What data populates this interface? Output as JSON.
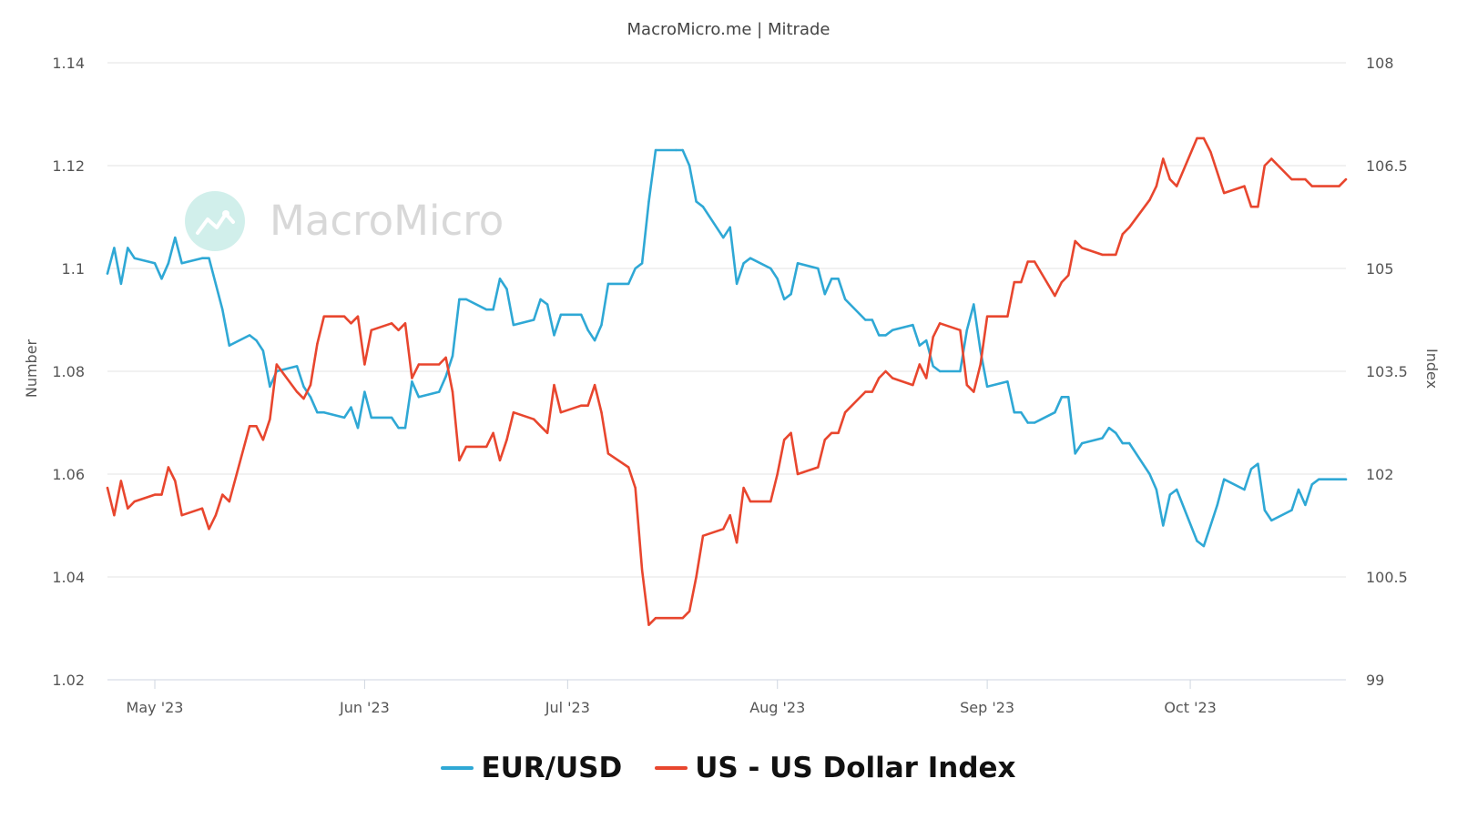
{
  "chart_data": {
    "type": "line",
    "title": "MacroMicro.me | Mitrade",
    "watermark": "MacroMicro",
    "xlabel": "",
    "ylabel_left": "Number",
    "ylabel_right": "Index",
    "ylim_left": [
      1.02,
      1.14
    ],
    "ylim_right": [
      99,
      108
    ],
    "yticks_left": [
      "1.02",
      "1.04",
      "1.06",
      "1.08",
      "1.1",
      "1.12",
      "1.14"
    ],
    "yticks_right": [
      "99",
      "100.5",
      "102",
      "103.5",
      "105",
      "106.5",
      "108"
    ],
    "x_range": [
      "2023-04-24",
      "2023-10-24"
    ],
    "x_ticks": [
      {
        "date": "2023-05-01",
        "label": "May '23"
      },
      {
        "date": "2023-06-01",
        "label": "Jun '23"
      },
      {
        "date": "2023-07-01",
        "label": "Jul '23"
      },
      {
        "date": "2023-08-01",
        "label": "Aug '23"
      },
      {
        "date": "2023-09-01",
        "label": "Sep '23"
      },
      {
        "date": "2023-10-01",
        "label": "Oct '23"
      }
    ],
    "grid": true,
    "legend_position": "bottom-center",
    "series": [
      {
        "name": "EUR/USD",
        "axis": "left",
        "color": "#2fa8d5",
        "points": [
          [
            "2023-04-24",
            1.099
          ],
          [
            "2023-04-25",
            1.104
          ],
          [
            "2023-04-26",
            1.097
          ],
          [
            "2023-04-27",
            1.104
          ],
          [
            "2023-04-28",
            1.102
          ],
          [
            "2023-05-01",
            1.101
          ],
          [
            "2023-05-02",
            1.098
          ],
          [
            "2023-05-03",
            1.101
          ],
          [
            "2023-05-04",
            1.106
          ],
          [
            "2023-05-05",
            1.101
          ],
          [
            "2023-05-08",
            1.102
          ],
          [
            "2023-05-09",
            1.102
          ],
          [
            "2023-05-10",
            1.097
          ],
          [
            "2023-05-11",
            1.092
          ],
          [
            "2023-05-12",
            1.085
          ],
          [
            "2023-05-15",
            1.087
          ],
          [
            "2023-05-16",
            1.086
          ],
          [
            "2023-05-17",
            1.084
          ],
          [
            "2023-05-18",
            1.077
          ],
          [
            "2023-05-19",
            1.08
          ],
          [
            "2023-05-22",
            1.081
          ],
          [
            "2023-05-23",
            1.077
          ],
          [
            "2023-05-24",
            1.075
          ],
          [
            "2023-05-25",
            1.072
          ],
          [
            "2023-05-26",
            1.072
          ],
          [
            "2023-05-29",
            1.071
          ],
          [
            "2023-05-30",
            1.073
          ],
          [
            "2023-05-31",
            1.069
          ],
          [
            "2023-06-01",
            1.076
          ],
          [
            "2023-06-02",
            1.071
          ],
          [
            "2023-06-05",
            1.071
          ],
          [
            "2023-06-06",
            1.069
          ],
          [
            "2023-06-07",
            1.069
          ],
          [
            "2023-06-08",
            1.078
          ],
          [
            "2023-06-09",
            1.075
          ],
          [
            "2023-06-12",
            1.076
          ],
          [
            "2023-06-13",
            1.079
          ],
          [
            "2023-06-14",
            1.083
          ],
          [
            "2023-06-15",
            1.094
          ],
          [
            "2023-06-16",
            1.094
          ],
          [
            "2023-06-19",
            1.092
          ],
          [
            "2023-06-20",
            1.092
          ],
          [
            "2023-06-21",
            1.098
          ],
          [
            "2023-06-22",
            1.096
          ],
          [
            "2023-06-23",
            1.089
          ],
          [
            "2023-06-26",
            1.09
          ],
          [
            "2023-06-27",
            1.094
          ],
          [
            "2023-06-28",
            1.093
          ],
          [
            "2023-06-29",
            1.087
          ],
          [
            "2023-06-30",
            1.091
          ],
          [
            "2023-07-03",
            1.091
          ],
          [
            "2023-07-04",
            1.088
          ],
          [
            "2023-07-05",
            1.086
          ],
          [
            "2023-07-06",
            1.089
          ],
          [
            "2023-07-07",
            1.097
          ],
          [
            "2023-07-10",
            1.097
          ],
          [
            "2023-07-11",
            1.1
          ],
          [
            "2023-07-12",
            1.101
          ],
          [
            "2023-07-13",
            1.113
          ],
          [
            "2023-07-14",
            1.123
          ],
          [
            "2023-07-17",
            1.123
          ],
          [
            "2023-07-18",
            1.123
          ],
          [
            "2023-07-19",
            1.12
          ],
          [
            "2023-07-20",
            1.113
          ],
          [
            "2023-07-21",
            1.112
          ],
          [
            "2023-07-24",
            1.106
          ],
          [
            "2023-07-25",
            1.108
          ],
          [
            "2023-07-26",
            1.097
          ],
          [
            "2023-07-27",
            1.101
          ],
          [
            "2023-07-28",
            1.102
          ],
          [
            "2023-07-31",
            1.1
          ],
          [
            "2023-08-01",
            1.098
          ],
          [
            "2023-08-02",
            1.094
          ],
          [
            "2023-08-03",
            1.095
          ],
          [
            "2023-08-04",
            1.101
          ],
          [
            "2023-08-07",
            1.1
          ],
          [
            "2023-08-08",
            1.095
          ],
          [
            "2023-08-09",
            1.098
          ],
          [
            "2023-08-10",
            1.098
          ],
          [
            "2023-08-11",
            1.094
          ],
          [
            "2023-08-14",
            1.09
          ],
          [
            "2023-08-15",
            1.09
          ],
          [
            "2023-08-16",
            1.087
          ],
          [
            "2023-08-17",
            1.087
          ],
          [
            "2023-08-18",
            1.088
          ],
          [
            "2023-08-21",
            1.089
          ],
          [
            "2023-08-22",
            1.085
          ],
          [
            "2023-08-23",
            1.086
          ],
          [
            "2023-08-24",
            1.081
          ],
          [
            "2023-08-25",
            1.08
          ],
          [
            "2023-08-28",
            1.08
          ],
          [
            "2023-08-29",
            1.088
          ],
          [
            "2023-08-30",
            1.093
          ],
          [
            "2023-08-31",
            1.084
          ],
          [
            "2023-09-01",
            1.077
          ],
          [
            "2023-09-04",
            1.078
          ],
          [
            "2023-09-05",
            1.072
          ],
          [
            "2023-09-06",
            1.072
          ],
          [
            "2023-09-07",
            1.07
          ],
          [
            "2023-09-08",
            1.07
          ],
          [
            "2023-09-11",
            1.072
          ],
          [
            "2023-09-12",
            1.075
          ],
          [
            "2023-09-13",
            1.075
          ],
          [
            "2023-09-14",
            1.064
          ],
          [
            "2023-09-15",
            1.066
          ],
          [
            "2023-09-18",
            1.067
          ],
          [
            "2023-09-19",
            1.069
          ],
          [
            "2023-09-20",
            1.068
          ],
          [
            "2023-09-21",
            1.066
          ],
          [
            "2023-09-22",
            1.066
          ],
          [
            "2023-09-25",
            1.06
          ],
          [
            "2023-09-26",
            1.057
          ],
          [
            "2023-09-27",
            1.05
          ],
          [
            "2023-09-28",
            1.056
          ],
          [
            "2023-09-29",
            1.057
          ],
          [
            "2023-10-02",
            1.047
          ],
          [
            "2023-10-03",
            1.046
          ],
          [
            "2023-10-04",
            1.05
          ],
          [
            "2023-10-05",
            1.054
          ],
          [
            "2023-10-06",
            1.059
          ],
          [
            "2023-10-09",
            1.057
          ],
          [
            "2023-10-10",
            1.061
          ],
          [
            "2023-10-11",
            1.062
          ],
          [
            "2023-10-12",
            1.053
          ],
          [
            "2023-10-13",
            1.051
          ],
          [
            "2023-10-16",
            1.053
          ],
          [
            "2023-10-17",
            1.057
          ],
          [
            "2023-10-18",
            1.054
          ],
          [
            "2023-10-19",
            1.058
          ],
          [
            "2023-10-20",
            1.059
          ],
          [
            "2023-10-23",
            1.059
          ],
          [
            "2023-10-24",
            1.059
          ]
        ]
      },
      {
        "name": "US - US Dollar Index",
        "axis": "right",
        "color": "#e8462e",
        "points": [
          [
            "2023-04-24",
            101.8
          ],
          [
            "2023-04-25",
            101.4
          ],
          [
            "2023-04-26",
            101.9
          ],
          [
            "2023-04-27",
            101.5
          ],
          [
            "2023-04-28",
            101.6
          ],
          [
            "2023-05-01",
            101.7
          ],
          [
            "2023-05-02",
            101.7
          ],
          [
            "2023-05-03",
            102.1
          ],
          [
            "2023-05-04",
            101.9
          ],
          [
            "2023-05-05",
            101.4
          ],
          [
            "2023-05-08",
            101.5
          ],
          [
            "2023-05-09",
            101.2
          ],
          [
            "2023-05-10",
            101.4
          ],
          [
            "2023-05-11",
            101.7
          ],
          [
            "2023-05-12",
            101.6
          ],
          [
            "2023-05-15",
            102.7
          ],
          [
            "2023-05-16",
            102.7
          ],
          [
            "2023-05-17",
            102.5
          ],
          [
            "2023-05-18",
            102.8
          ],
          [
            "2023-05-19",
            103.6
          ],
          [
            "2023-05-22",
            103.2
          ],
          [
            "2023-05-23",
            103.1
          ],
          [
            "2023-05-24",
            103.3
          ],
          [
            "2023-05-25",
            103.9
          ],
          [
            "2023-05-26",
            104.3
          ],
          [
            "2023-05-29",
            104.3
          ],
          [
            "2023-05-30",
            104.2
          ],
          [
            "2023-05-31",
            104.3
          ],
          [
            "2023-06-01",
            103.6
          ],
          [
            "2023-06-02",
            104.1
          ],
          [
            "2023-06-05",
            104.2
          ],
          [
            "2023-06-06",
            104.1
          ],
          [
            "2023-06-07",
            104.2
          ],
          [
            "2023-06-08",
            103.4
          ],
          [
            "2023-06-09",
            103.6
          ],
          [
            "2023-06-12",
            103.6
          ],
          [
            "2023-06-13",
            103.7
          ],
          [
            "2023-06-14",
            103.2
          ],
          [
            "2023-06-15",
            102.2
          ],
          [
            "2023-06-16",
            102.4
          ],
          [
            "2023-06-19",
            102.4
          ],
          [
            "2023-06-20",
            102.6
          ],
          [
            "2023-06-21",
            102.2
          ],
          [
            "2023-06-22",
            102.5
          ],
          [
            "2023-06-23",
            102.9
          ],
          [
            "2023-06-26",
            102.8
          ],
          [
            "2023-06-27",
            102.7
          ],
          [
            "2023-06-28",
            102.6
          ],
          [
            "2023-06-29",
            103.3
          ],
          [
            "2023-06-30",
            102.9
          ],
          [
            "2023-07-03",
            103.0
          ],
          [
            "2023-07-04",
            103.0
          ],
          [
            "2023-07-05",
            103.3
          ],
          [
            "2023-07-06",
            102.9
          ],
          [
            "2023-07-07",
            102.3
          ],
          [
            "2023-07-10",
            102.1
          ],
          [
            "2023-07-11",
            101.8
          ],
          [
            "2023-07-12",
            100.6
          ],
          [
            "2023-07-13",
            99.8
          ],
          [
            "2023-07-14",
            99.9
          ],
          [
            "2023-07-17",
            99.9
          ],
          [
            "2023-07-18",
            99.9
          ],
          [
            "2023-07-19",
            100.0
          ],
          [
            "2023-07-20",
            100.5
          ],
          [
            "2023-07-21",
            101.1
          ],
          [
            "2023-07-24",
            101.2
          ],
          [
            "2023-07-25",
            101.4
          ],
          [
            "2023-07-26",
            101.0
          ],
          [
            "2023-07-27",
            101.8
          ],
          [
            "2023-07-28",
            101.6
          ],
          [
            "2023-07-31",
            101.6
          ],
          [
            "2023-08-01",
            102.0
          ],
          [
            "2023-08-02",
            102.5
          ],
          [
            "2023-08-03",
            102.6
          ],
          [
            "2023-08-04",
            102.0
          ],
          [
            "2023-08-07",
            102.1
          ],
          [
            "2023-08-08",
            102.5
          ],
          [
            "2023-08-09",
            102.6
          ],
          [
            "2023-08-10",
            102.6
          ],
          [
            "2023-08-11",
            102.9
          ],
          [
            "2023-08-14",
            103.2
          ],
          [
            "2023-08-15",
            103.2
          ],
          [
            "2023-08-16",
            103.4
          ],
          [
            "2023-08-17",
            103.5
          ],
          [
            "2023-08-18",
            103.4
          ],
          [
            "2023-08-21",
            103.3
          ],
          [
            "2023-08-22",
            103.6
          ],
          [
            "2023-08-23",
            103.4
          ],
          [
            "2023-08-24",
            104.0
          ],
          [
            "2023-08-25",
            104.2
          ],
          [
            "2023-08-28",
            104.1
          ],
          [
            "2023-08-29",
            103.3
          ],
          [
            "2023-08-30",
            103.2
          ],
          [
            "2023-08-31",
            103.6
          ],
          [
            "2023-09-01",
            104.3
          ],
          [
            "2023-09-04",
            104.3
          ],
          [
            "2023-09-05",
            104.8
          ],
          [
            "2023-09-06",
            104.8
          ],
          [
            "2023-09-07",
            105.1
          ],
          [
            "2023-09-08",
            105.1
          ],
          [
            "2023-09-11",
            104.6
          ],
          [
            "2023-09-12",
            104.8
          ],
          [
            "2023-09-13",
            104.9
          ],
          [
            "2023-09-14",
            105.4
          ],
          [
            "2023-09-15",
            105.3
          ],
          [
            "2023-09-18",
            105.2
          ],
          [
            "2023-09-19",
            105.2
          ],
          [
            "2023-09-20",
            105.2
          ],
          [
            "2023-09-21",
            105.5
          ],
          [
            "2023-09-22",
            105.6
          ],
          [
            "2023-09-25",
            106.0
          ],
          [
            "2023-09-26",
            106.2
          ],
          [
            "2023-09-27",
            106.6
          ],
          [
            "2023-09-28",
            106.3
          ],
          [
            "2023-09-29",
            106.2
          ],
          [
            "2023-10-02",
            106.9
          ],
          [
            "2023-10-03",
            106.9
          ],
          [
            "2023-10-04",
            106.7
          ],
          [
            "2023-10-05",
            106.4
          ],
          [
            "2023-10-06",
            106.1
          ],
          [
            "2023-10-09",
            106.2
          ],
          [
            "2023-10-10",
            105.9
          ],
          [
            "2023-10-11",
            105.9
          ],
          [
            "2023-10-12",
            106.5
          ],
          [
            "2023-10-13",
            106.6
          ],
          [
            "2023-10-16",
            106.3
          ],
          [
            "2023-10-17",
            106.3
          ],
          [
            "2023-10-18",
            106.3
          ],
          [
            "2023-10-19",
            106.2
          ],
          [
            "2023-10-20",
            106.2
          ],
          [
            "2023-10-23",
            106.2
          ],
          [
            "2023-10-24",
            106.3
          ]
        ]
      }
    ]
  }
}
